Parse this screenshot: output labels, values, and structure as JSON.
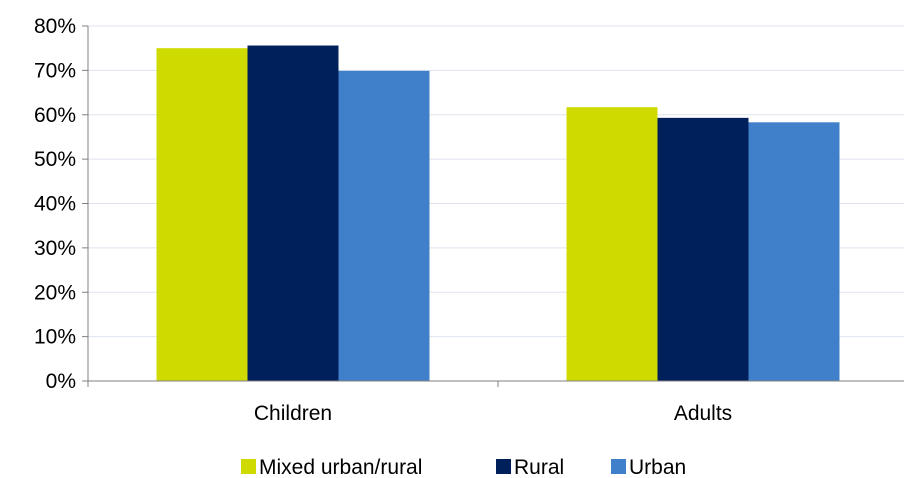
{
  "chart_data": {
    "type": "bar",
    "title": "",
    "xlabel": "",
    "ylabel": "",
    "categories": [
      "Children",
      "Adults"
    ],
    "series": [
      {
        "name": "Mixed urban/rural",
        "color": "#cfdb00",
        "values": [
          0.75,
          0.617
        ]
      },
      {
        "name": "Rural",
        "color": "#00205b",
        "values": [
          0.756,
          0.593
        ]
      },
      {
        "name": "Urban",
        "color": "#4080ca",
        "values": [
          0.699,
          0.583
        ]
      }
    ],
    "ylim": [
      0,
      0.8
    ],
    "yticks": [
      {
        "value": 0,
        "label": "0%"
      },
      {
        "value": 0.1,
        "label": "10%"
      },
      {
        "value": 0.2,
        "label": "20%"
      },
      {
        "value": 0.3,
        "label": "30%"
      },
      {
        "value": 0.4,
        "label": "40%"
      },
      {
        "value": 0.5,
        "label": "50%"
      },
      {
        "value": 0.6,
        "label": "60%"
      },
      {
        "value": 0.7,
        "label": "70%"
      },
      {
        "value": 0.8,
        "label": "80%"
      }
    ],
    "grid": true,
    "grid_color": "#dde3ee",
    "axis_color": "#808080",
    "legend_position": "bottom"
  }
}
